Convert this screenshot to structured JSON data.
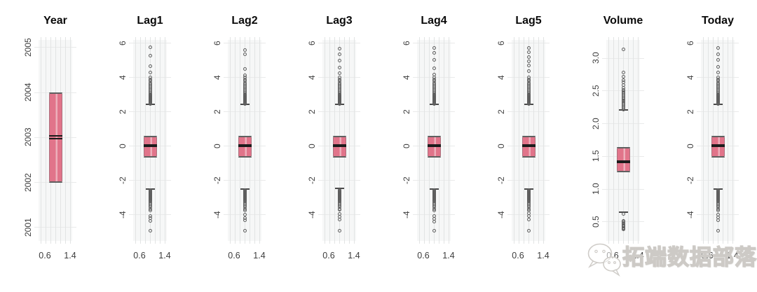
{
  "figure": {
    "background": "#ffffff",
    "box_color": "#e1748a",
    "box_stripe_color": "#edafbb"
  },
  "watermark": {
    "text": "拓端数据部落",
    "icon": "wechat-chat-bubbles-icon"
  },
  "chart_data": [
    {
      "type": "boxplot",
      "title": "Year",
      "ylim": [
        2000.7,
        2005.17
      ],
      "yticks": [
        2001,
        2002,
        2003,
        2004,
        2005
      ],
      "ytick_labels": [
        "2001",
        "2002",
        "2003",
        "2004",
        "2005"
      ],
      "xtick_labels": [
        "0.6",
        "1.4"
      ],
      "box": {
        "q1": 2002,
        "median": 2003,
        "q3": 2004
      },
      "median_style": "double",
      "whisker_high": null,
      "whisker_low": null,
      "outliers_high": [],
      "outliers_low": []
    },
    {
      "type": "boxplot",
      "title": "Lag1",
      "ylim": [
        -5.51,
        6.2
      ],
      "yticks": [
        -4,
        -2,
        0,
        2,
        4,
        6
      ],
      "ytick_labels": [
        "-4",
        "-2",
        "0",
        "2",
        "4",
        "6"
      ],
      "xtick_labels": [
        "0.6",
        "1.4"
      ],
      "box": {
        "q1": -0.64,
        "median": 0.039,
        "q3": 0.597
      },
      "median_style": "single",
      "whisker_high": 2.43,
      "whisker_low": -2.5,
      "outliers_high": [
        2.46,
        2.5,
        2.54,
        2.58,
        2.62,
        2.66,
        2.7,
        2.74,
        2.78,
        2.82,
        2.86,
        2.9,
        2.94,
        2.98,
        3.02,
        3.12,
        3.2,
        3.28,
        3.36,
        3.44,
        3.52,
        3.6,
        3.7,
        3.8,
        3.9,
        4.0,
        4.3,
        4.65,
        5.3,
        5.76
      ],
      "outliers_low": [
        -2.55,
        -2.59,
        -2.63,
        -2.67,
        -2.71,
        -2.75,
        -2.79,
        -2.83,
        -2.87,
        -2.91,
        -2.95,
        -2.99,
        -3.03,
        -3.07,
        -3.11,
        -3.15,
        -3.22,
        -3.3,
        -3.38,
        -3.46,
        -3.55,
        -3.65,
        -3.75,
        -4.05,
        -4.2,
        -4.35,
        -4.92
      ]
    },
    {
      "type": "boxplot",
      "title": "Lag2",
      "ylim": [
        -5.51,
        6.2
      ],
      "yticks": [
        -4,
        -2,
        0,
        2,
        4,
        6
      ],
      "ytick_labels": [
        "-4",
        "-2",
        "0",
        "2",
        "4",
        "6"
      ],
      "xtick_labels": [
        "0.6",
        "1.4"
      ],
      "box": {
        "q1": -0.64,
        "median": 0.039,
        "q3": 0.597
      },
      "median_style": "single",
      "whisker_high": 2.43,
      "whisker_low": -2.5,
      "outliers_high": [
        2.46,
        2.5,
        2.54,
        2.58,
        2.62,
        2.66,
        2.7,
        2.74,
        2.78,
        2.82,
        2.86,
        2.9,
        2.94,
        2.98,
        3.02,
        3.12,
        3.2,
        3.28,
        3.36,
        3.44,
        3.52,
        3.6,
        3.7,
        3.8,
        3.9,
        4.0,
        4.15,
        4.5,
        5.35,
        5.6
      ],
      "outliers_low": [
        -2.55,
        -2.59,
        -2.63,
        -2.67,
        -2.71,
        -2.75,
        -2.79,
        -2.83,
        -2.87,
        -2.91,
        -2.95,
        -2.99,
        -3.03,
        -3.07,
        -3.11,
        -3.15,
        -3.22,
        -3.3,
        -3.38,
        -3.46,
        -3.55,
        -3.65,
        -3.75,
        -4.0,
        -4.18,
        -4.3,
        -4.92
      ]
    },
    {
      "type": "boxplot",
      "title": "Lag3",
      "ylim": [
        -5.51,
        6.2
      ],
      "yticks": [
        -4,
        -2,
        0,
        2,
        4,
        6
      ],
      "ytick_labels": [
        "-4",
        "-2",
        "0",
        "2",
        "4",
        "6"
      ],
      "xtick_labels": [
        "0.6",
        "1.4"
      ],
      "box": {
        "q1": -0.64,
        "median": 0.039,
        "q3": 0.597
      },
      "median_style": "single",
      "whisker_high": 2.43,
      "whisker_low": -2.45,
      "outliers_high": [
        2.46,
        2.5,
        2.54,
        2.58,
        2.62,
        2.66,
        2.7,
        2.74,
        2.78,
        2.82,
        2.86,
        2.9,
        2.94,
        2.98,
        3.02,
        3.12,
        3.2,
        3.28,
        3.36,
        3.44,
        3.52,
        3.6,
        3.7,
        3.8,
        3.9,
        4.0,
        4.25,
        4.6,
        5.0,
        5.35,
        5.7
      ],
      "outliers_low": [
        -2.55,
        -2.59,
        -2.63,
        -2.67,
        -2.71,
        -2.75,
        -2.79,
        -2.83,
        -2.87,
        -2.91,
        -2.95,
        -2.99,
        -3.03,
        -3.07,
        -3.11,
        -3.15,
        -3.22,
        -3.3,
        -3.38,
        -3.46,
        -3.55,
        -3.65,
        -3.7,
        -3.95,
        -4.1,
        -4.28,
        -4.92
      ]
    },
    {
      "type": "boxplot",
      "title": "Lag4",
      "ylim": [
        -5.51,
        6.2
      ],
      "yticks": [
        -4,
        -2,
        0,
        2,
        4,
        6
      ],
      "ytick_labels": [
        "-4",
        "-2",
        "0",
        "2",
        "4",
        "6"
      ],
      "xtick_labels": [
        "0.6",
        "1.4"
      ],
      "box": {
        "q1": -0.64,
        "median": 0.039,
        "q3": 0.597
      },
      "median_style": "single",
      "whisker_high": 2.43,
      "whisker_low": -2.5,
      "outliers_high": [
        2.46,
        2.5,
        2.54,
        2.58,
        2.62,
        2.66,
        2.7,
        2.74,
        2.78,
        2.82,
        2.86,
        2.9,
        2.94,
        2.98,
        3.02,
        3.12,
        3.2,
        3.28,
        3.36,
        3.44,
        3.52,
        3.6,
        3.7,
        3.8,
        3.9,
        4.0,
        4.2,
        4.55,
        5.05,
        5.45,
        5.73
      ],
      "outliers_low": [
        -2.55,
        -2.59,
        -2.63,
        -2.67,
        -2.71,
        -2.75,
        -2.79,
        -2.83,
        -2.87,
        -2.91,
        -2.95,
        -2.99,
        -3.03,
        -3.07,
        -3.11,
        -3.15,
        -3.22,
        -3.3,
        -3.38,
        -3.46,
        -3.55,
        -3.65,
        -3.75,
        -4.05,
        -4.22,
        -4.4,
        -4.92
      ]
    },
    {
      "type": "boxplot",
      "title": "Lag5",
      "ylim": [
        -5.51,
        6.2
      ],
      "yticks": [
        -4,
        -2,
        0,
        2,
        4,
        6
      ],
      "ytick_labels": [
        "-4",
        "-2",
        "0",
        "2",
        "4",
        "6"
      ],
      "xtick_labels": [
        "0.6",
        "1.4"
      ],
      "box": {
        "q1": -0.64,
        "median": 0.039,
        "q3": 0.597
      },
      "median_style": "single",
      "whisker_high": 2.43,
      "whisker_low": -2.5,
      "outliers_high": [
        2.46,
        2.5,
        2.54,
        2.58,
        2.62,
        2.66,
        2.7,
        2.74,
        2.78,
        2.82,
        2.86,
        2.9,
        2.94,
        2.98,
        3.02,
        3.12,
        3.2,
        3.28,
        3.36,
        3.44,
        3.52,
        3.6,
        3.7,
        3.8,
        3.9,
        4.0,
        4.4,
        4.7,
        4.95,
        5.2,
        5.5,
        5.73
      ],
      "outliers_low": [
        -2.55,
        -2.59,
        -2.63,
        -2.67,
        -2.71,
        -2.75,
        -2.79,
        -2.83,
        -2.87,
        -2.91,
        -2.95,
        -2.99,
        -3.03,
        -3.07,
        -3.11,
        -3.15,
        -3.22,
        -3.3,
        -3.38,
        -3.46,
        -3.55,
        -3.65,
        -3.75,
        -3.9,
        -4.05,
        -4.25,
        -4.92
      ]
    },
    {
      "type": "boxplot",
      "title": "Volume",
      "ylim": [
        0.21,
        3.28
      ],
      "yticks": [
        0.5,
        1.0,
        1.5,
        2.0,
        2.5,
        3.0
      ],
      "ytick_labels": [
        "0.5",
        "1.0",
        "1.5",
        "2.0",
        "2.5",
        "3.0"
      ],
      "xtick_labels": [
        "0.6",
        "1.4"
      ],
      "box": {
        "q1": 1.257,
        "median": 1.423,
        "q3": 1.642
      },
      "median_style": "single",
      "whisker_high": 2.21,
      "whisker_low": 0.65,
      "outliers_high": [
        2.22,
        2.24,
        2.26,
        2.28,
        2.3,
        2.32,
        2.34,
        2.36,
        2.38,
        2.4,
        2.42,
        2.44,
        2.46,
        2.48,
        2.5,
        2.52,
        2.55,
        2.59,
        2.63,
        2.67,
        2.72,
        2.78,
        3.14
      ],
      "outliers_low": [
        0.62,
        0.52,
        0.5,
        0.485,
        0.47,
        0.455,
        0.44,
        0.425,
        0.41,
        0.4,
        0.39
      ]
    },
    {
      "type": "boxplot",
      "title": "Today",
      "ylim": [
        -5.51,
        6.2
      ],
      "yticks": [
        -4,
        -2,
        0,
        2,
        4,
        6
      ],
      "ytick_labels": [
        "-4",
        "-2",
        "0",
        "2",
        "4",
        "6"
      ],
      "xtick_labels": [
        "0.6",
        "1.4"
      ],
      "box": {
        "q1": -0.64,
        "median": 0.039,
        "q3": 0.597
      },
      "median_style": "single",
      "whisker_high": 2.43,
      "whisker_low": -2.5,
      "outliers_high": [
        2.46,
        2.5,
        2.54,
        2.58,
        2.62,
        2.66,
        2.7,
        2.74,
        2.78,
        2.82,
        2.86,
        2.9,
        2.94,
        2.98,
        3.02,
        3.12,
        3.2,
        3.28,
        3.36,
        3.44,
        3.52,
        3.6,
        3.7,
        3.8,
        3.9,
        4.0,
        4.3,
        4.62,
        5.05,
        5.35,
        5.73
      ],
      "outliers_low": [
        -2.55,
        -2.59,
        -2.63,
        -2.67,
        -2.71,
        -2.75,
        -2.79,
        -2.83,
        -2.87,
        -2.91,
        -2.95,
        -2.99,
        -3.03,
        -3.07,
        -3.11,
        -3.15,
        -3.22,
        -3.3,
        -3.38,
        -3.46,
        -3.55,
        -3.65,
        -3.75,
        -4.0,
        -4.15,
        -4.32,
        -4.92
      ]
    }
  ]
}
